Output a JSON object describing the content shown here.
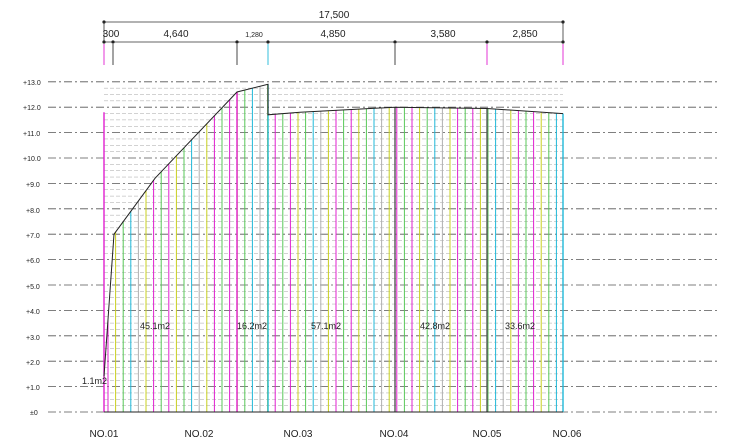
{
  "dimensions": {
    "total": "17,500",
    "segments": [
      "300",
      "4,640",
      "1,280",
      "4,850",
      "3,580",
      "2,850"
    ]
  },
  "levels": [
    "±0",
    "+1.0",
    "+2.0",
    "+3.0",
    "+4.0",
    "+5.0",
    "+6.0",
    "+7.0",
    "+8.0",
    "+9.0",
    "+10.0",
    "+11.0",
    "+12.0",
    "+13.0"
  ],
  "stations": [
    "NO.01",
    "NO.02",
    "NO.03",
    "NO.04",
    "NO.05",
    "NO.06"
  ],
  "areas": [
    "1.1m2",
    "45.1m2",
    "16.2m2",
    "57.1m2",
    "42.8m2",
    "33.6m2"
  ],
  "colors": {
    "magenta": "#e020d0",
    "yellow": "#c8d020",
    "green": "#58c858",
    "cyan": "#20b8d8",
    "grid": "#555555",
    "outline": "#222222"
  }
}
